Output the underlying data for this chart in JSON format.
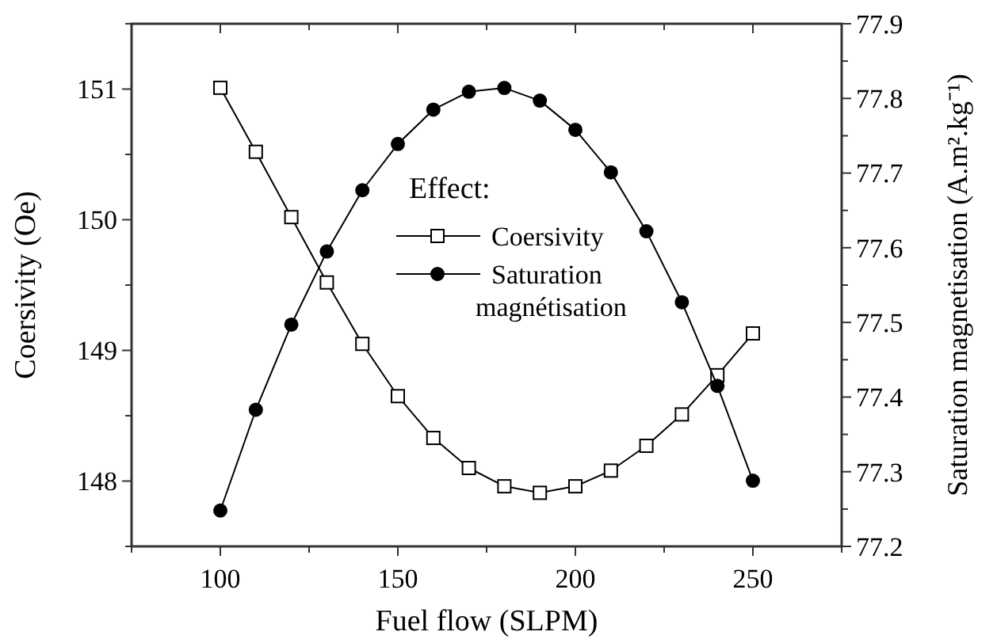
{
  "chart_data": {
    "type": "line",
    "xlabel": "Fuel flow (SLPM)",
    "ylabel": "Coersivity (Oe)",
    "y2label": "Saturation magnetisation (A.m².kg⁻¹)",
    "legend_title": "Effect:",
    "legend": "center",
    "grid": false,
    "line_style": "solid",
    "x": [
      100,
      110,
      120,
      130,
      140,
      150,
      160,
      170,
      180,
      190,
      200,
      210,
      220,
      230,
      240,
      250
    ],
    "xlim": [
      75,
      275
    ],
    "xticks": [
      {
        "value": 75,
        "label": null
      },
      100,
      {
        "value": 125,
        "label": null
      },
      150,
      {
        "value": 175,
        "label": null
      },
      200,
      {
        "value": 225,
        "label": null
      },
      250,
      {
        "value": 275,
        "label": null
      }
    ],
    "ylim": [
      147.5,
      151.5
    ],
    "yticks": [
      {
        "value": 147.5,
        "label": null
      },
      148,
      {
        "value": 148.5,
        "label": null
      },
      149,
      {
        "value": 149.5,
        "label": null
      },
      150,
      {
        "value": 150.5,
        "label": null
      },
      151,
      {
        "value": 151.5,
        "label": null
      }
    ],
    "y2lim": [
      77.2,
      77.9
    ],
    "y2ticks": [
      77.2,
      {
        "value": 77.25,
        "label": null
      },
      77.3,
      {
        "value": 77.35,
        "label": null
      },
      77.4,
      {
        "value": 77.45,
        "label": null
      },
      77.5,
      {
        "value": 77.55,
        "label": null
      },
      77.6,
      {
        "value": 77.65,
        "label": null
      },
      77.7,
      {
        "value": 77.75,
        "label": null
      },
      77.8,
      {
        "value": 77.85,
        "label": null
      },
      77.9
    ],
    "series": [
      {
        "name": "Coersivity",
        "color": "#000000",
        "marker": "square",
        "values": [
          151.01,
          150.52,
          150.02,
          149.52,
          149.05,
          148.65,
          148.33,
          148.1,
          147.96,
          147.91,
          147.96,
          148.08,
          148.27,
          148.51,
          148.81,
          149.13
        ]
      },
      {
        "name": "Saturation magnétisation",
        "color": "#000000",
        "marker": "circle",
        "axis": "y2",
        "values": [
          77.248,
          77.383,
          77.497,
          77.595,
          77.677,
          77.739,
          77.785,
          77.809,
          77.814,
          77.797,
          77.758,
          77.701,
          77.622,
          77.527,
          77.415,
          77.288
        ]
      }
    ]
  }
}
